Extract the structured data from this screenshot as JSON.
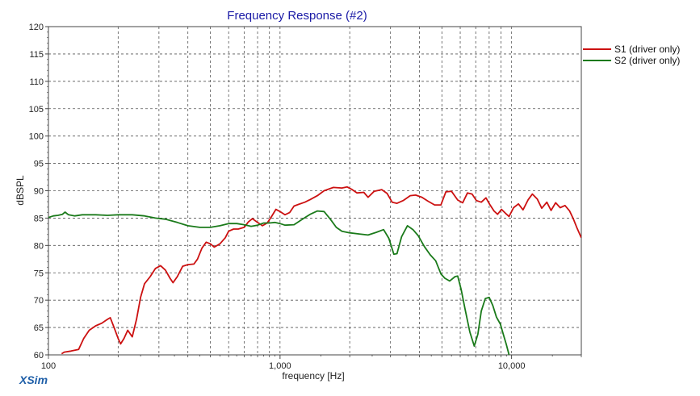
{
  "app": {
    "brand": "XSim"
  },
  "chart_data": {
    "type": "line",
    "title": "Frequency Response (#2)",
    "xlabel": "frequency [Hz]",
    "ylabel": "dBSPL",
    "xscale": "log",
    "xlim": [
      100,
      20000
    ],
    "ylim": [
      60,
      120
    ],
    "grid": true,
    "legend_position": "top-right",
    "xticks": [
      {
        "value": 100,
        "label": "100"
      },
      {
        "value": 1000,
        "label": "1,000"
      },
      {
        "value": 10000,
        "label": "10,000"
      }
    ],
    "yticks": [
      {
        "value": 60,
        "label": "60"
      },
      {
        "value": 65,
        "label": "65"
      },
      {
        "value": 70,
        "label": "70"
      },
      {
        "value": 75,
        "label": "75"
      },
      {
        "value": 80,
        "label": "80"
      },
      {
        "value": 85,
        "label": "85"
      },
      {
        "value": 90,
        "label": "90"
      },
      {
        "value": 95,
        "label": "95"
      },
      {
        "value": 100,
        "label": "100"
      },
      {
        "value": 105,
        "label": "105"
      },
      {
        "value": 110,
        "label": "110"
      },
      {
        "value": 115,
        "label": "115"
      },
      {
        "value": 120,
        "label": "120"
      }
    ],
    "series": [
      {
        "name": "S1 (driver only)",
        "color": "#cc1111",
        "points": [
          [
            114,
            60.2
          ],
          [
            117,
            60.5
          ],
          [
            125,
            60.7
          ],
          [
            135,
            61
          ],
          [
            142,
            63
          ],
          [
            150,
            64.5
          ],
          [
            160,
            65.3
          ],
          [
            170,
            65.8
          ],
          [
            180,
            66.5
          ],
          [
            185,
            66.8
          ],
          [
            192,
            65
          ],
          [
            200,
            63
          ],
          [
            205,
            62
          ],
          [
            212,
            63
          ],
          [
            220,
            64.5
          ],
          [
            230,
            63.3
          ],
          [
            240,
            66.5
          ],
          [
            250,
            70.5
          ],
          [
            260,
            73
          ],
          [
            275,
            74.3
          ],
          [
            290,
            75.8
          ],
          [
            305,
            76.3
          ],
          [
            320,
            75.5
          ],
          [
            335,
            74
          ],
          [
            345,
            73.2
          ],
          [
            360,
            74.3
          ],
          [
            380,
            76.2
          ],
          [
            400,
            76.5
          ],
          [
            425,
            76.6
          ],
          [
            440,
            77.5
          ],
          [
            460,
            79.5
          ],
          [
            480,
            80.6
          ],
          [
            500,
            80.3
          ],
          [
            520,
            79.7
          ],
          [
            550,
            80.3
          ],
          [
            580,
            81.4
          ],
          [
            600,
            82.6
          ],
          [
            630,
            83
          ],
          [
            660,
            83
          ],
          [
            700,
            83.3
          ],
          [
            730,
            84.3
          ],
          [
            760,
            84.9
          ],
          [
            800,
            84.2
          ],
          [
            840,
            83.6
          ],
          [
            880,
            84.1
          ],
          [
            920,
            85.3
          ],
          [
            960,
            86.6
          ],
          [
            1000,
            86.2
          ],
          [
            1050,
            85.6
          ],
          [
            1100,
            86
          ],
          [
            1150,
            87.2
          ],
          [
            1200,
            87.5
          ],
          [
            1280,
            87.9
          ],
          [
            1350,
            88.4
          ],
          [
            1450,
            89.1
          ],
          [
            1550,
            90
          ],
          [
            1700,
            90.6
          ],
          [
            1850,
            90.5
          ],
          [
            1950,
            90.7
          ],
          [
            2050,
            90.2
          ],
          [
            2150,
            89.6
          ],
          [
            2300,
            89.7
          ],
          [
            2400,
            88.8
          ],
          [
            2550,
            89.9
          ],
          [
            2750,
            90.2
          ],
          [
            2900,
            89.5
          ],
          [
            3050,
            87.9
          ],
          [
            3200,
            87.7
          ],
          [
            3400,
            88.2
          ],
          [
            3650,
            89.1
          ],
          [
            3850,
            89.2
          ],
          [
            4100,
            88.8
          ],
          [
            4350,
            88.1
          ],
          [
            4650,
            87.4
          ],
          [
            4950,
            87.4
          ],
          [
            5200,
            89.8
          ],
          [
            5500,
            89.9
          ],
          [
            5850,
            88.3
          ],
          [
            6150,
            87.8
          ],
          [
            6450,
            89.6
          ],
          [
            6750,
            89.4
          ],
          [
            7050,
            88.2
          ],
          [
            7400,
            87.9
          ],
          [
            7750,
            88.7
          ],
          [
            8050,
            87.5
          ],
          [
            8400,
            86.3
          ],
          [
            8700,
            85.7
          ],
          [
            9050,
            86.6
          ],
          [
            9400,
            85.9
          ],
          [
            9750,
            85.3
          ],
          [
            10200,
            86.9
          ],
          [
            10700,
            87.6
          ],
          [
            11200,
            86.5
          ],
          [
            11800,
            88.4
          ],
          [
            12300,
            89.4
          ],
          [
            12900,
            88.5
          ],
          [
            13500,
            86.8
          ],
          [
            14200,
            87.9
          ],
          [
            14800,
            86.4
          ],
          [
            15500,
            87.8
          ],
          [
            16200,
            86.9
          ],
          [
            17000,
            87.3
          ],
          [
            17800,
            86.3
          ],
          [
            18500,
            84.8
          ],
          [
            19200,
            83.1
          ],
          [
            20000,
            81.4
          ]
        ]
      },
      {
        "name": "S2 (driver only)",
        "color": "#1a7a1a",
        "points": [
          [
            100,
            85.1
          ],
          [
            105,
            85.4
          ],
          [
            110,
            85.5
          ],
          [
            115,
            85.7
          ],
          [
            118,
            86.1
          ],
          [
            122,
            85.6
          ],
          [
            130,
            85.4
          ],
          [
            140,
            85.6
          ],
          [
            160,
            85.6
          ],
          [
            180,
            85.5
          ],
          [
            200,
            85.6
          ],
          [
            230,
            85.6
          ],
          [
            260,
            85.4
          ],
          [
            290,
            85
          ],
          [
            320,
            84.8
          ],
          [
            360,
            84.2
          ],
          [
            400,
            83.6
          ],
          [
            450,
            83.3
          ],
          [
            500,
            83.3
          ],
          [
            550,
            83.6
          ],
          [
            600,
            84
          ],
          [
            650,
            84
          ],
          [
            700,
            83.8
          ],
          [
            750,
            83.5
          ],
          [
            800,
            83.7
          ],
          [
            850,
            84.1
          ],
          [
            900,
            84.1
          ],
          [
            950,
            84.2
          ],
          [
            1000,
            84
          ],
          [
            1050,
            83.7
          ],
          [
            1150,
            83.8
          ],
          [
            1250,
            84.8
          ],
          [
            1350,
            85.7
          ],
          [
            1450,
            86.3
          ],
          [
            1550,
            86.2
          ],
          [
            1650,
            84.8
          ],
          [
            1750,
            83.3
          ],
          [
            1850,
            82.6
          ],
          [
            2000,
            82.3
          ],
          [
            2200,
            82.1
          ],
          [
            2400,
            81.9
          ],
          [
            2600,
            82.4
          ],
          [
            2800,
            82.9
          ],
          [
            2950,
            81.3
          ],
          [
            3100,
            78.4
          ],
          [
            3200,
            78.5
          ],
          [
            3350,
            81.6
          ],
          [
            3550,
            83.6
          ],
          [
            3750,
            82.9
          ],
          [
            3950,
            81.8
          ],
          [
            4200,
            79.8
          ],
          [
            4450,
            78.3
          ],
          [
            4700,
            77.2
          ],
          [
            4950,
            74.8
          ],
          [
            5150,
            74
          ],
          [
            5400,
            73.5
          ],
          [
            5700,
            74.3
          ],
          [
            5850,
            74.4
          ],
          [
            6050,
            72
          ],
          [
            6300,
            68.3
          ],
          [
            6600,
            64.2
          ],
          [
            6900,
            61.6
          ],
          [
            7150,
            63.8
          ],
          [
            7400,
            68
          ],
          [
            7700,
            70.3
          ],
          [
            8000,
            70.5
          ],
          [
            8300,
            69
          ],
          [
            8600,
            66.9
          ],
          [
            8950,
            65.6
          ],
          [
            9200,
            63.8
          ],
          [
            9500,
            61.8
          ],
          [
            9750,
            60
          ]
        ]
      }
    ]
  }
}
